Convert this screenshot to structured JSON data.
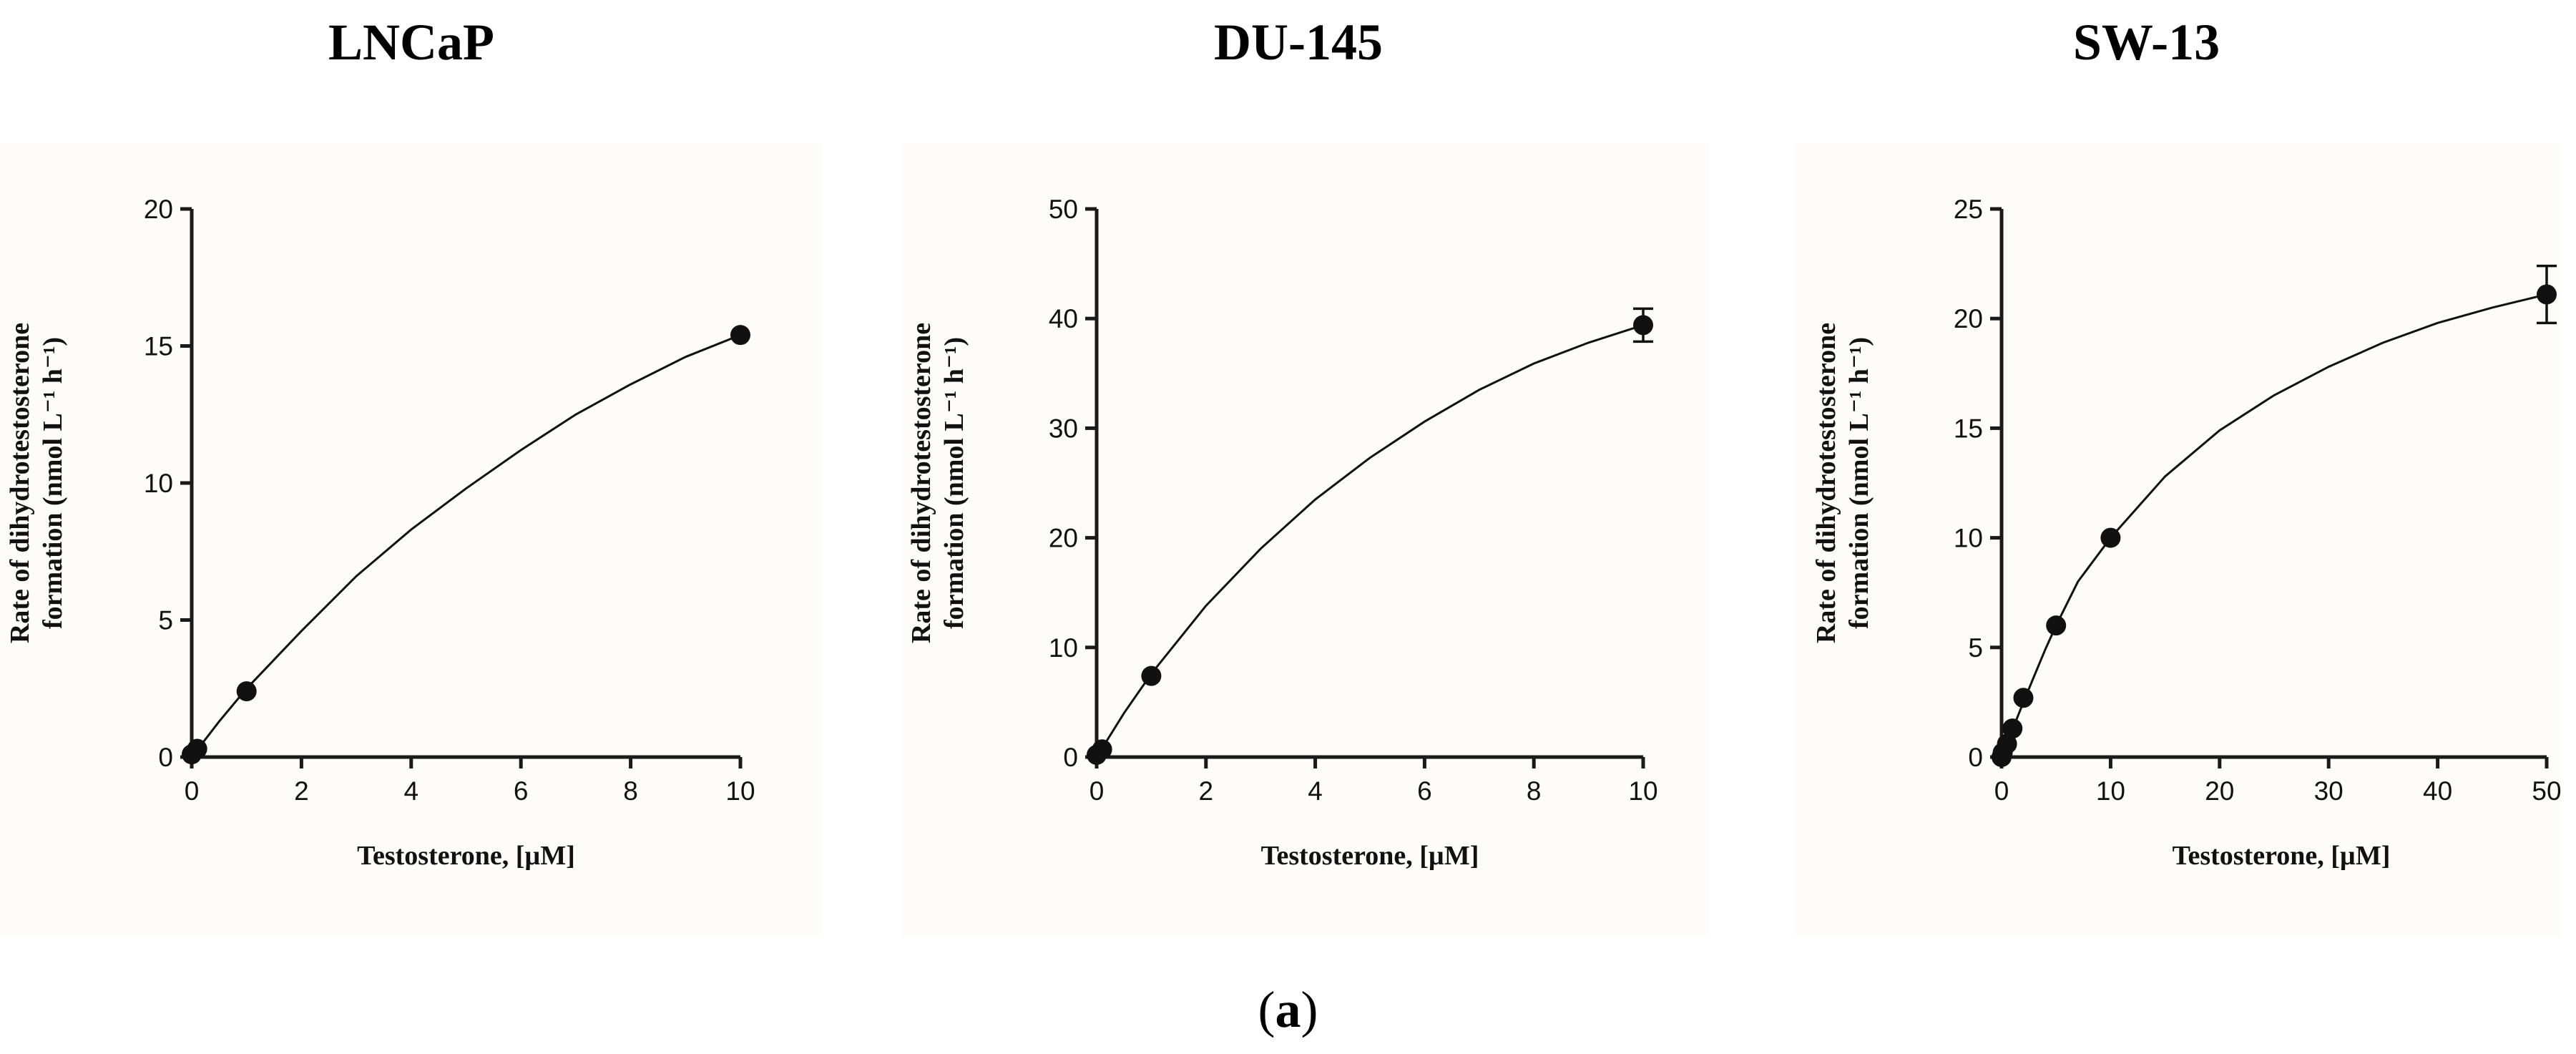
{
  "caption": {
    "open": "(",
    "letter": "a",
    "close": ")"
  },
  "chart_data": [
    {
      "type": "scatter",
      "title": "LNCaP",
      "xlabel": "Testosterone, [µM]",
      "ylabel_line1": "Rate of dihydrotestosterone",
      "ylabel_line2": "formation (nmol L⁻¹ h⁻¹)",
      "xlim": [
        0,
        10
      ],
      "ylim": [
        0,
        20
      ],
      "xticks": [
        0,
        2,
        4,
        6,
        8,
        10
      ],
      "yticks": [
        0,
        5,
        10,
        15,
        20
      ],
      "grid": false,
      "series": [
        {
          "points": [
            {
              "x": 0,
              "y": 0.1,
              "err": 0
            },
            {
              "x": 0.1,
              "y": 0.3,
              "err": 0
            },
            {
              "x": 1,
              "y": 2.4,
              "err": 0
            },
            {
              "x": 10,
              "y": 15.4,
              "err": 0
            }
          ],
          "curve": [
            [
              0,
              0
            ],
            [
              0.5,
              1.3
            ],
            [
              1,
              2.5
            ],
            [
              2,
              4.6
            ],
            [
              3,
              6.6
            ],
            [
              4,
              8.3
            ],
            [
              5,
              9.8
            ],
            [
              6,
              11.2
            ],
            [
              7,
              12.5
            ],
            [
              8,
              13.6
            ],
            [
              9,
              14.6
            ],
            [
              10,
              15.4
            ]
          ]
        }
      ]
    },
    {
      "type": "scatter",
      "title": "DU-145",
      "xlabel": "Testosterone, [µM]",
      "ylabel_line1": "Rate of dihydrotestosterone",
      "ylabel_line2": "formation (nmol L⁻¹ h⁻¹)",
      "xlim": [
        0,
        10
      ],
      "ylim": [
        0,
        50
      ],
      "xticks": [
        0,
        2,
        4,
        6,
        8,
        10
      ],
      "yticks": [
        0,
        10,
        20,
        30,
        40,
        50
      ],
      "grid": false,
      "series": [
        {
          "points": [
            {
              "x": 0,
              "y": 0.2,
              "err": 0
            },
            {
              "x": 0.1,
              "y": 0.7,
              "err": 0
            },
            {
              "x": 1,
              "y": 7.4,
              "err": 0
            },
            {
              "x": 10,
              "y": 39.4,
              "err": 1.5
            }
          ],
          "curve": [
            [
              0,
              0
            ],
            [
              0.5,
              4.0
            ],
            [
              1,
              7.6
            ],
            [
              2,
              13.8
            ],
            [
              3,
              19.0
            ],
            [
              4,
              23.5
            ],
            [
              5,
              27.3
            ],
            [
              6,
              30.6
            ],
            [
              7,
              33.5
            ],
            [
              8,
              35.9
            ],
            [
              9,
              37.8
            ],
            [
              10,
              39.4
            ]
          ]
        }
      ]
    },
    {
      "type": "scatter",
      "title": "SW-13",
      "xlabel": "Testosterone, [µM]",
      "ylabel_line1": "Rate of dihydrotestosterone",
      "ylabel_line2": "formation (nmol L⁻¹ h⁻¹)",
      "xlim": [
        0,
        50
      ],
      "ylim": [
        0,
        25
      ],
      "xticks": [
        0,
        10,
        20,
        30,
        40,
        50
      ],
      "yticks": [
        0,
        5,
        10,
        15,
        20,
        25
      ],
      "grid": false,
      "series": [
        {
          "points": [
            {
              "x": 0,
              "y": 0.0,
              "err": 0
            },
            {
              "x": 0.1,
              "y": 0.2,
              "err": 0
            },
            {
              "x": 0.5,
              "y": 0.6,
              "err": 0
            },
            {
              "x": 1,
              "y": 1.3,
              "err": 0
            },
            {
              "x": 2,
              "y": 2.7,
              "err": 0
            },
            {
              "x": 5,
              "y": 6.0,
              "err": 0
            },
            {
              "x": 10,
              "y": 10.0,
              "err": 0
            },
            {
              "x": 50,
              "y": 21.1,
              "err": 1.3
            }
          ],
          "curve": [
            [
              0,
              0
            ],
            [
              1,
              1.25
            ],
            [
              2,
              2.5
            ],
            [
              3,
              3.7
            ],
            [
              4,
              4.9
            ],
            [
              5,
              6.0
            ],
            [
              7,
              8.0
            ],
            [
              10,
              10.0
            ],
            [
              15,
              12.8
            ],
            [
              20,
              14.9
            ],
            [
              25,
              16.5
            ],
            [
              30,
              17.8
            ],
            [
              35,
              18.9
            ],
            [
              40,
              19.8
            ],
            [
              45,
              20.5
            ],
            [
              50,
              21.1
            ]
          ]
        }
      ]
    }
  ]
}
